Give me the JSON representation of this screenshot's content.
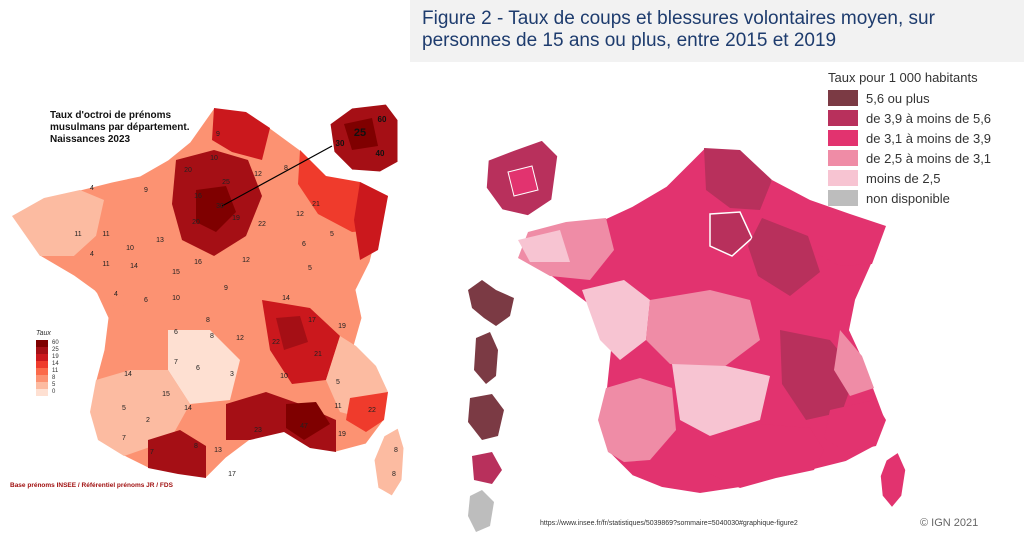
{
  "left": {
    "title_lines": [
      "Taux d'octroi de prénoms",
      "musulmans par département.",
      "Naissances 2023"
    ],
    "legend_title": "Taux",
    "legend_items": [
      {
        "label": "60",
        "color": "#7f0000"
      },
      {
        "label": "25",
        "color": "#a50f15"
      },
      {
        "label": "19",
        "color": "#cb181d"
      },
      {
        "label": "14",
        "color": "#ef3b2c"
      },
      {
        "label": "11",
        "color": "#fb6a4a"
      },
      {
        "label": "8",
        "color": "#fc9272"
      },
      {
        "label": "5",
        "color": "#fcbba1"
      },
      {
        "label": "0",
        "color": "#fee0d2"
      }
    ],
    "source": "Base prénoms INSEE / Référentiel prénoms JR / FDS",
    "inset_labels": [
      "25",
      "60",
      "30",
      "40"
    ],
    "map_labels": [
      {
        "t": "9"
      },
      {
        "t": "10"
      },
      {
        "t": "20"
      },
      {
        "t": "25"
      },
      {
        "t": "12"
      },
      {
        "t": "8"
      },
      {
        "t": "4"
      },
      {
        "t": "9"
      },
      {
        "t": "16"
      },
      {
        "t": "30"
      },
      {
        "t": "20"
      },
      {
        "t": "19"
      },
      {
        "t": "22"
      },
      {
        "t": "21"
      },
      {
        "t": "11"
      },
      {
        "t": "11"
      },
      {
        "t": "13"
      },
      {
        "t": "10"
      },
      {
        "t": "11"
      },
      {
        "t": "14"
      },
      {
        "t": "15"
      },
      {
        "t": "16"
      },
      {
        "t": "12"
      },
      {
        "t": "6"
      },
      {
        "t": "4"
      },
      {
        "t": "6"
      },
      {
        "t": "10"
      },
      {
        "t": "9"
      },
      {
        "t": "14"
      },
      {
        "t": "5"
      },
      {
        "t": "7"
      },
      {
        "t": "8"
      },
      {
        "t": "12"
      },
      {
        "t": "22"
      },
      {
        "t": "17"
      },
      {
        "t": "19"
      },
      {
        "t": "14"
      },
      {
        "t": "6"
      },
      {
        "t": "3"
      },
      {
        "t": "21"
      },
      {
        "t": "10"
      },
      {
        "t": "5"
      },
      {
        "t": "15"
      },
      {
        "t": "14"
      },
      {
        "t": "23"
      },
      {
        "t": "47"
      },
      {
        "t": "11"
      },
      {
        "t": "22"
      },
      {
        "t": "5"
      },
      {
        "t": "7"
      },
      {
        "t": "2"
      },
      {
        "t": "7"
      },
      {
        "t": "8"
      },
      {
        "t": "13"
      },
      {
        "t": "19"
      },
      {
        "t": "17"
      },
      {
        "t": "8"
      },
      {
        "t": "8"
      },
      {
        "t": "5"
      },
      {
        "t": "12"
      },
      {
        "t": "6"
      },
      {
        "t": "4"
      },
      {
        "t": "8"
      }
    ]
  },
  "right": {
    "title": "Figure 2 - Taux de coups et blessures volontaires moyen, sur personnes de 15 ans ou plus, entre 2015 et 2019",
    "legend_title": "Taux pour 1 000 habitants",
    "legend_items": [
      {
        "label": "5,6 ou plus",
        "color": "#7b3a44"
      },
      {
        "label": "de 3,9 à moins de 5,6",
        "color": "#b8305c"
      },
      {
        "label": "de 3,1 à moins de 3,9",
        "color": "#e2336f"
      },
      {
        "label": "de 2,5 à moins de 3,1",
        "color": "#ef8ca6"
      },
      {
        "label": "moins de 2,5",
        "color": "#f7c4d2"
      },
      {
        "label": "non disponible",
        "color": "#bdbdbd"
      }
    ],
    "url": "https://www.insee.fr/fr/statistiques/5039869?sommaire=5040030#graphique-figure2",
    "credit": "© IGN 2021"
  }
}
